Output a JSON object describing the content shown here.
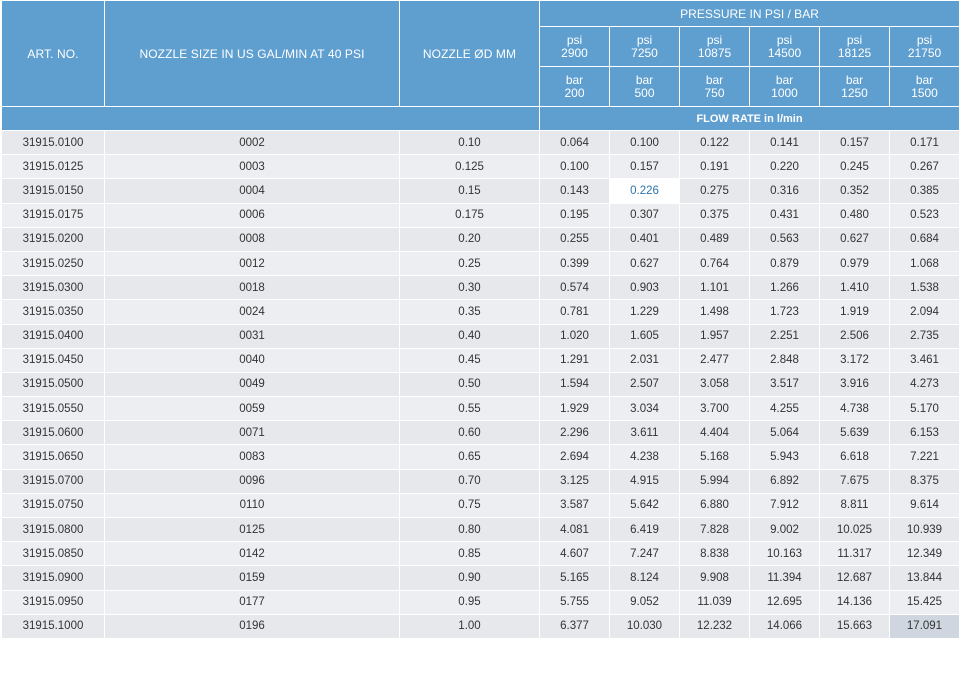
{
  "headers": {
    "art_no": "ART. NO.",
    "nozzle_size": "NOZZLE SIZE IN US GAL/MIN AT 40 PSI",
    "nozzle_dia": "NOZZLE ØD MM",
    "pressure_title": "PRESSURE IN PSI / BAR",
    "flow_title": "FLOW RATE in l/min",
    "psi_unit": "psi",
    "bar_unit": "bar",
    "psi_values": [
      "2900",
      "7250",
      "10875",
      "14500",
      "18125",
      "21750"
    ],
    "bar_values": [
      "200",
      "500",
      "750",
      "1000",
      "1250",
      "1500"
    ]
  },
  "rows": [
    [
      "31915.0100",
      "0002",
      "0.10",
      "0.064",
      "0.100",
      "0.122",
      "0.141",
      "0.157",
      "0.171"
    ],
    [
      "31915.0125",
      "0003",
      "0.125",
      "0.100",
      "0.157",
      "0.191",
      "0.220",
      "0.245",
      "0.267"
    ],
    [
      "31915.0150",
      "0004",
      "0.15",
      "0.143",
      "0.226",
      "0.275",
      "0.316",
      "0.352",
      "0.385"
    ],
    [
      "31915.0175",
      "0006",
      "0.175",
      "0.195",
      "0.307",
      "0.375",
      "0.431",
      "0.480",
      "0.523"
    ],
    [
      "31915.0200",
      "0008",
      "0.20",
      "0.255",
      "0.401",
      "0.489",
      "0.563",
      "0.627",
      "0.684"
    ],
    [
      "31915.0250",
      "0012",
      "0.25",
      "0.399",
      "0.627",
      "0.764",
      "0.879",
      "0.979",
      "1.068"
    ],
    [
      "31915.0300",
      "0018",
      "0.30",
      "0.574",
      "0.903",
      "1.101",
      "1.266",
      "1.410",
      "1.538"
    ],
    [
      "31915.0350",
      "0024",
      "0.35",
      "0.781",
      "1.229",
      "1.498",
      "1.723",
      "1.919",
      "2.094"
    ],
    [
      "31915.0400",
      "0031",
      "0.40",
      "1.020",
      "1.605",
      "1.957",
      "2.251",
      "2.506",
      "2.735"
    ],
    [
      "31915.0450",
      "0040",
      "0.45",
      "1.291",
      "2.031",
      "2.477",
      "2.848",
      "3.172",
      "3.461"
    ],
    [
      "31915.0500",
      "0049",
      "0.50",
      "1.594",
      "2.507",
      "3.058",
      "3.517",
      "3.916",
      "4.273"
    ],
    [
      "31915.0550",
      "0059",
      "0.55",
      "1.929",
      "3.034",
      "3.700",
      "4.255",
      "4.738",
      "5.170"
    ],
    [
      "31915.0600",
      "0071",
      "0.60",
      "2.296",
      "3.611",
      "4.404",
      "5.064",
      "5.639",
      "6.153"
    ],
    [
      "31915.0650",
      "0083",
      "0.65",
      "2.694",
      "4.238",
      "5.168",
      "5.943",
      "6.618",
      "7.221"
    ],
    [
      "31915.0700",
      "0096",
      "0.70",
      "3.125",
      "4.915",
      "5.994",
      "6.892",
      "7.675",
      "8.375"
    ],
    [
      "31915.0750",
      "0110",
      "0.75",
      "3.587",
      "5.642",
      "6.880",
      "7.912",
      "8.811",
      "9.614"
    ],
    [
      "31915.0800",
      "0125",
      "0.80",
      "4.081",
      "6.419",
      "7.828",
      "9.002",
      "10.025",
      "10.939"
    ],
    [
      "31915.0850",
      "0142",
      "0.85",
      "4.607",
      "7.247",
      "8.838",
      "10.163",
      "11.317",
      "12.349"
    ],
    [
      "31915.0900",
      "0159",
      "0.90",
      "5.165",
      "8.124",
      "9.908",
      "11.394",
      "12.687",
      "13.844"
    ],
    [
      "31915.0950",
      "0177",
      "0.95",
      "5.755",
      "9.052",
      "11.039",
      "12.695",
      "14.136",
      "15.425"
    ],
    [
      "31915.1000",
      "0196",
      "1.00",
      "6.377",
      "10.030",
      "12.232",
      "14.066",
      "15.663",
      "17.091"
    ]
  ],
  "highlights": {
    "hovered_cell": "0.226",
    "selected_cell": "17.091"
  }
}
